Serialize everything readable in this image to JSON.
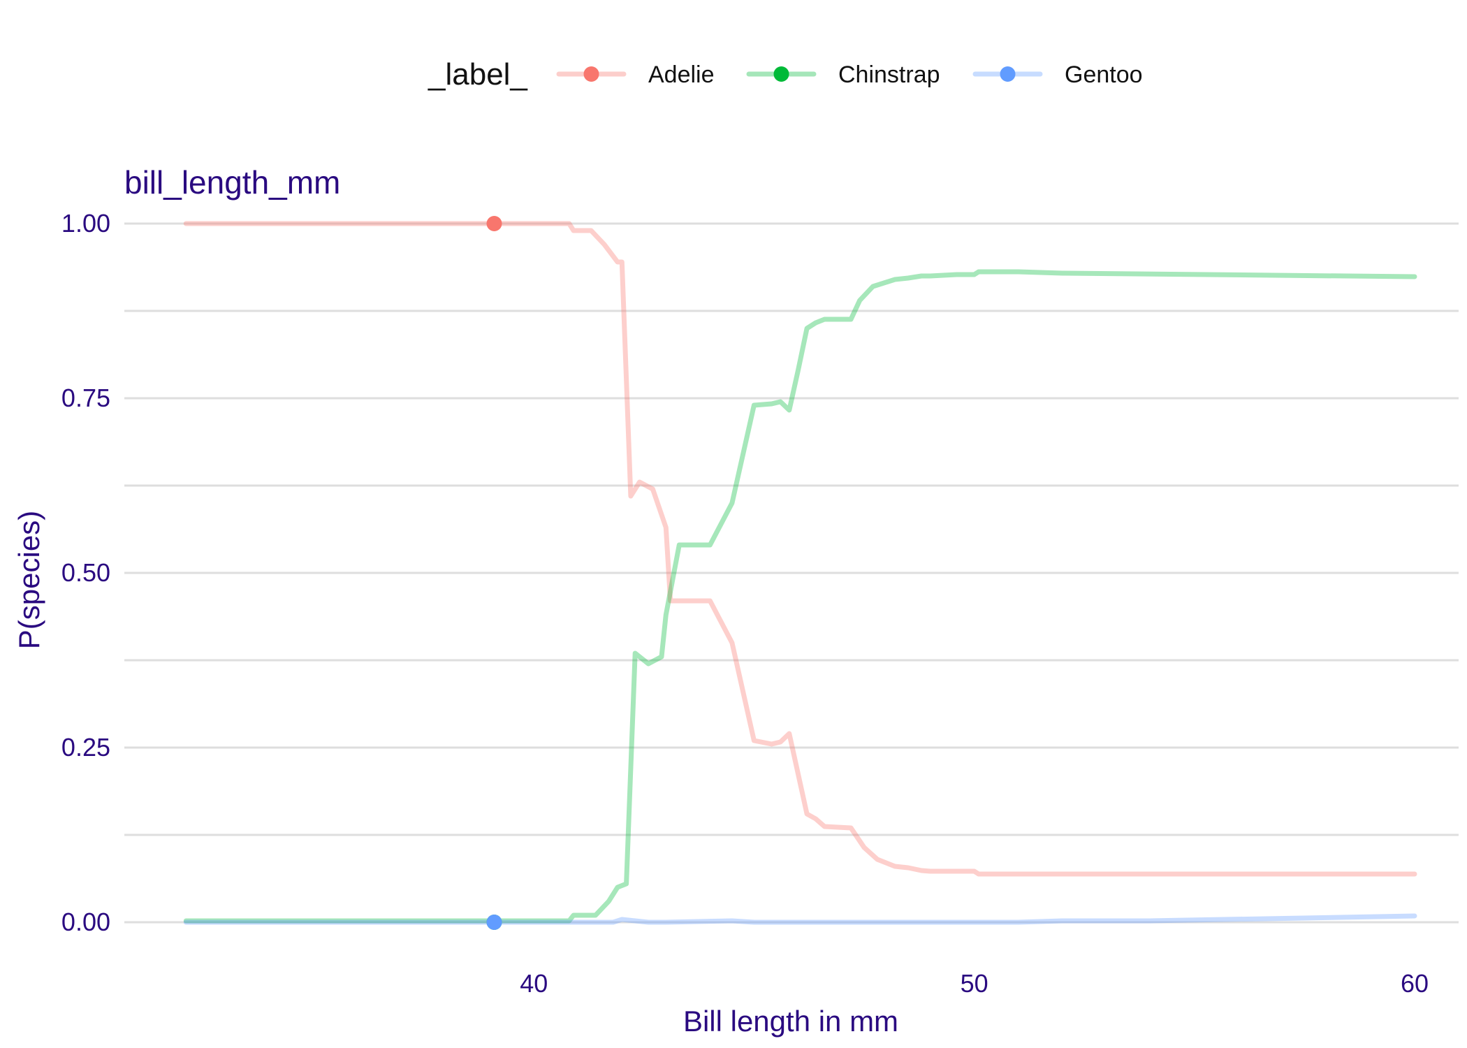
{
  "chart_data": {
    "type": "line",
    "title": "bill_length_mm",
    "xlabel": "Bill length in mm",
    "ylabel": "P(species)",
    "xlim": [
      30.7,
      61
    ],
    "ylim": [
      -0.03,
      1.03
    ],
    "x_ticks": [
      40,
      50,
      60
    ],
    "x_tick_labels": [
      "40",
      "50",
      "60"
    ],
    "y_ticks": [
      0,
      0.25,
      0.5,
      0.75,
      1
    ],
    "y_tick_labels": [
      "0.00",
      "0.25",
      "0.50",
      "0.75",
      "1.00"
    ],
    "y_minor_ticks": [
      0.125,
      0.375,
      0.625,
      0.875
    ],
    "grid": true,
    "legend": {
      "title": "_label_",
      "position": "top"
    },
    "observation": {
      "x": 39.1,
      "points": {
        "Adelie": 1.0,
        "Chinstrap": 0.0,
        "Gentoo": 0.0
      }
    },
    "series": [
      {
        "name": "Adelie",
        "color": "#F8766D",
        "x": [
          32.1,
          39.1,
          40.8,
          40.9,
          41.3,
          41.6,
          41.9,
          42.0,
          42.2,
          42.4,
          42.7,
          43.0,
          43.1,
          43.3,
          44.0,
          44.5,
          45.0,
          45.4,
          45.6,
          45.8,
          46.2,
          46.4,
          46.6,
          47.2,
          47.5,
          47.8,
          48.2,
          48.5,
          48.8,
          49.0,
          49.6,
          50.0,
          50.1,
          51.0,
          52.0,
          60.0
        ],
        "values": [
          1.0,
          1.0,
          1.0,
          0.99,
          0.99,
          0.97,
          0.945,
          0.945,
          0.61,
          0.63,
          0.62,
          0.565,
          0.46,
          0.46,
          0.46,
          0.4,
          0.26,
          0.255,
          0.258,
          0.27,
          0.155,
          0.148,
          0.137,
          0.135,
          0.107,
          0.09,
          0.08,
          0.078,
          0.074,
          0.073,
          0.073,
          0.073,
          0.069,
          0.069,
          0.069,
          0.069
        ]
      },
      {
        "name": "Chinstrap",
        "color": "#00BA38",
        "x": [
          32.1,
          39.1,
          40.8,
          40.9,
          41.4,
          41.7,
          41.9,
          42.1,
          42.3,
          42.6,
          42.9,
          43.0,
          43.3,
          43.5,
          44.0,
          44.5,
          45.0,
          45.4,
          45.6,
          45.8,
          46.0,
          46.2,
          46.4,
          46.6,
          47.2,
          47.4,
          47.7,
          48.2,
          48.5,
          48.8,
          49.0,
          49.6,
          50.0,
          50.1,
          51.0,
          52.0,
          60.0
        ],
        "values": [
          0.002,
          0.002,
          0.002,
          0.01,
          0.01,
          0.03,
          0.05,
          0.055,
          0.385,
          0.37,
          0.38,
          0.44,
          0.54,
          0.54,
          0.54,
          0.6,
          0.74,
          0.742,
          0.745,
          0.733,
          0.79,
          0.85,
          0.858,
          0.863,
          0.863,
          0.89,
          0.91,
          0.92,
          0.922,
          0.925,
          0.925,
          0.927,
          0.927,
          0.931,
          0.931,
          0.929,
          0.924
        ]
      },
      {
        "name": "Gentoo",
        "color": "#619CFF",
        "x": [
          32.1,
          39.1,
          41.5,
          41.8,
          42.0,
          42.6,
          43.0,
          44.5,
          45.0,
          51.0,
          52.0,
          54.0,
          60.0
        ],
        "values": [
          0.0,
          0.0,
          0.0,
          0.0,
          0.004,
          0.0,
          0.0,
          0.002,
          0.0,
          0.0,
          0.002,
          0.002,
          0.009
        ]
      }
    ]
  }
}
